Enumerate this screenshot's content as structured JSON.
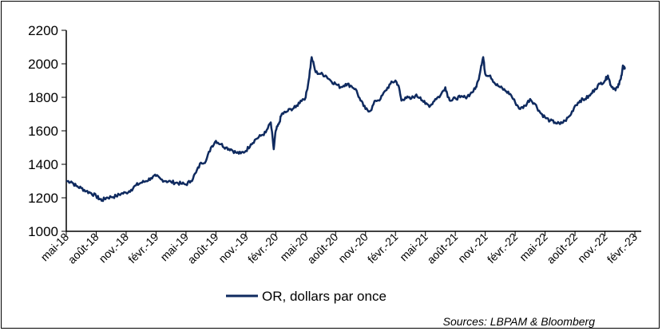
{
  "chart_data": {
    "type": "line",
    "title": "",
    "xlabel": "",
    "ylabel": "",
    "ylim": [
      1000,
      2200
    ],
    "yticks": [
      1000,
      1200,
      1400,
      1600,
      1800,
      2000,
      2200
    ],
    "grid": false,
    "x_ticks": [
      "mai-18",
      "août-18",
      "nov.-18",
      "févr.-19",
      "mai-19",
      "août-19",
      "nov.-19",
      "févr.-20",
      "mai-20",
      "août-20",
      "nov.-20",
      "févr.-21",
      "mai-21",
      "août-21",
      "nov.-21",
      "févr.-22",
      "mai-22",
      "août-22",
      "nov.-22",
      "févr.-23"
    ],
    "series": [
      {
        "name": "OR, dollars par once",
        "color": "#0f2a5f",
        "points": [
          [
            0.0,
            1300
          ],
          [
            0.5,
            1297
          ],
          [
            1.0,
            1270
          ],
          [
            1.5,
            1258
          ],
          [
            2.0,
            1240
          ],
          [
            2.5,
            1228
          ],
          [
            3.0,
            1210
          ],
          [
            3.3,
            1195
          ],
          [
            3.6,
            1185
          ],
          [
            4.0,
            1200
          ],
          [
            4.5,
            1205
          ],
          [
            5.0,
            1210
          ],
          [
            5.5,
            1225
          ],
          [
            6.0,
            1230
          ],
          [
            6.5,
            1248
          ],
          [
            7.0,
            1275
          ],
          [
            7.5,
            1290
          ],
          [
            8.0,
            1300
          ],
          [
            8.5,
            1318
          ],
          [
            9.0,
            1330
          ],
          [
            9.5,
            1310
          ],
          [
            10.0,
            1300
          ],
          [
            10.5,
            1295
          ],
          [
            11.0,
            1290
          ],
          [
            11.5,
            1285
          ],
          [
            12.0,
            1280
          ],
          [
            12.5,
            1300
          ],
          [
            13.0,
            1350
          ],
          [
            13.5,
            1410
          ],
          [
            14.0,
            1420
          ],
          [
            14.5,
            1500
          ],
          [
            15.0,
            1540
          ],
          [
            15.5,
            1520
          ],
          [
            16.0,
            1500
          ],
          [
            16.5,
            1490
          ],
          [
            17.0,
            1470
          ],
          [
            17.5,
            1465
          ],
          [
            18.0,
            1480
          ],
          [
            18.5,
            1520
          ],
          [
            19.0,
            1550
          ],
          [
            19.5,
            1570
          ],
          [
            20.0,
            1590
          ],
          [
            20.5,
            1650
          ],
          [
            20.8,
            1490
          ],
          [
            21.0,
            1600
          ],
          [
            21.3,
            1640
          ],
          [
            21.6,
            1700
          ],
          [
            22.0,
            1710
          ],
          [
            22.5,
            1730
          ],
          [
            23.0,
            1740
          ],
          [
            23.5,
            1780
          ],
          [
            24.0,
            1800
          ],
          [
            24.3,
            1900
          ],
          [
            24.6,
            2040
          ],
          [
            25.0,
            1950
          ],
          [
            25.5,
            1940
          ],
          [
            26.0,
            1930
          ],
          [
            26.5,
            1900
          ],
          [
            27.0,
            1880
          ],
          [
            27.5,
            1860
          ],
          [
            28.0,
            1880
          ],
          [
            28.5,
            1870
          ],
          [
            29.0,
            1850
          ],
          [
            29.5,
            1780
          ],
          [
            30.0,
            1730
          ],
          [
            30.5,
            1720
          ],
          [
            31.0,
            1780
          ],
          [
            31.5,
            1790
          ],
          [
            32.0,
            1840
          ],
          [
            32.5,
            1880
          ],
          [
            33.0,
            1900
          ],
          [
            33.3,
            1870
          ],
          [
            33.6,
            1780
          ],
          [
            34.0,
            1800
          ],
          [
            34.5,
            1790
          ],
          [
            35.0,
            1810
          ],
          [
            35.5,
            1800
          ],
          [
            36.0,
            1760
          ],
          [
            36.5,
            1750
          ],
          [
            37.0,
            1790
          ],
          [
            37.5,
            1810
          ],
          [
            38.0,
            1860
          ],
          [
            38.3,
            1800
          ],
          [
            38.6,
            1780
          ],
          [
            39.0,
            1795
          ],
          [
            39.5,
            1800
          ],
          [
            40.0,
            1800
          ],
          [
            40.5,
            1820
          ],
          [
            41.0,
            1850
          ],
          [
            41.3,
            1900
          ],
          [
            41.6,
            1990
          ],
          [
            41.8,
            2040
          ],
          [
            42.0,
            1940
          ],
          [
            42.5,
            1930
          ],
          [
            43.0,
            1880
          ],
          [
            43.5,
            1860
          ],
          [
            44.0,
            1840
          ],
          [
            44.5,
            1820
          ],
          [
            45.0,
            1770
          ],
          [
            45.5,
            1730
          ],
          [
            46.0,
            1750
          ],
          [
            46.5,
            1790
          ],
          [
            47.0,
            1760
          ],
          [
            47.5,
            1710
          ],
          [
            48.0,
            1680
          ],
          [
            48.5,
            1660
          ],
          [
            49.0,
            1650
          ],
          [
            49.5,
            1640
          ],
          [
            50.0,
            1660
          ],
          [
            50.5,
            1690
          ],
          [
            51.0,
            1750
          ],
          [
            51.5,
            1780
          ],
          [
            52.0,
            1790
          ],
          [
            52.5,
            1810
          ],
          [
            53.0,
            1850
          ],
          [
            53.5,
            1880
          ],
          [
            54.0,
            1900
          ],
          [
            54.3,
            1930
          ],
          [
            54.6,
            1870
          ],
          [
            55.0,
            1850
          ],
          [
            55.3,
            1860
          ],
          [
            55.6,
            1910
          ],
          [
            55.8,
            1990
          ],
          [
            55.9,
            1970
          ],
          [
            56.0,
            1980
          ]
        ]
      }
    ],
    "legend": {
      "label": "OR, dollars par once",
      "position": "bottom-center"
    }
  },
  "source": "Sources: LBPAM & Bloomberg"
}
